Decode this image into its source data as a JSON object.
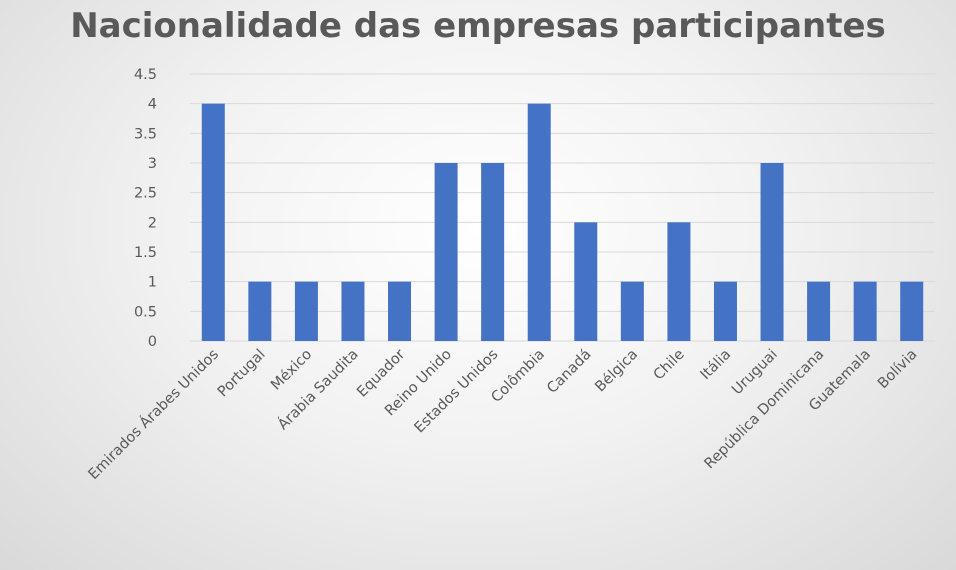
{
  "chart_data": {
    "type": "bar",
    "title": "Nacionalidade das empresas participantes",
    "xlabel": "",
    "ylabel": "",
    "categories": [
      "Emirados Árabes Unidos",
      "Portugal",
      "México",
      "Árabia Saudita",
      "Equador",
      "Reino Unido",
      "Estados Unidos",
      "Colômbia",
      "Canadá",
      "Bélgica",
      "Chile",
      "Itália",
      "Uruguai",
      "República Dominicana",
      "Guatemala",
      "Bolívia"
    ],
    "values": [
      4,
      1,
      1,
      1,
      1,
      3,
      3,
      4,
      2,
      1,
      2,
      1,
      3,
      1,
      1,
      1
    ],
    "ylim": [
      0,
      4.5
    ],
    "yticks": [
      "0",
      "0.5",
      "1",
      "1.5",
      "2",
      "2.5",
      "3",
      "3.5",
      "4",
      "4.5"
    ],
    "grid": true,
    "legend": "none",
    "colors": {
      "bar": "#4472C4",
      "gridline": "#d9d9d9",
      "text": "#595959"
    }
  }
}
